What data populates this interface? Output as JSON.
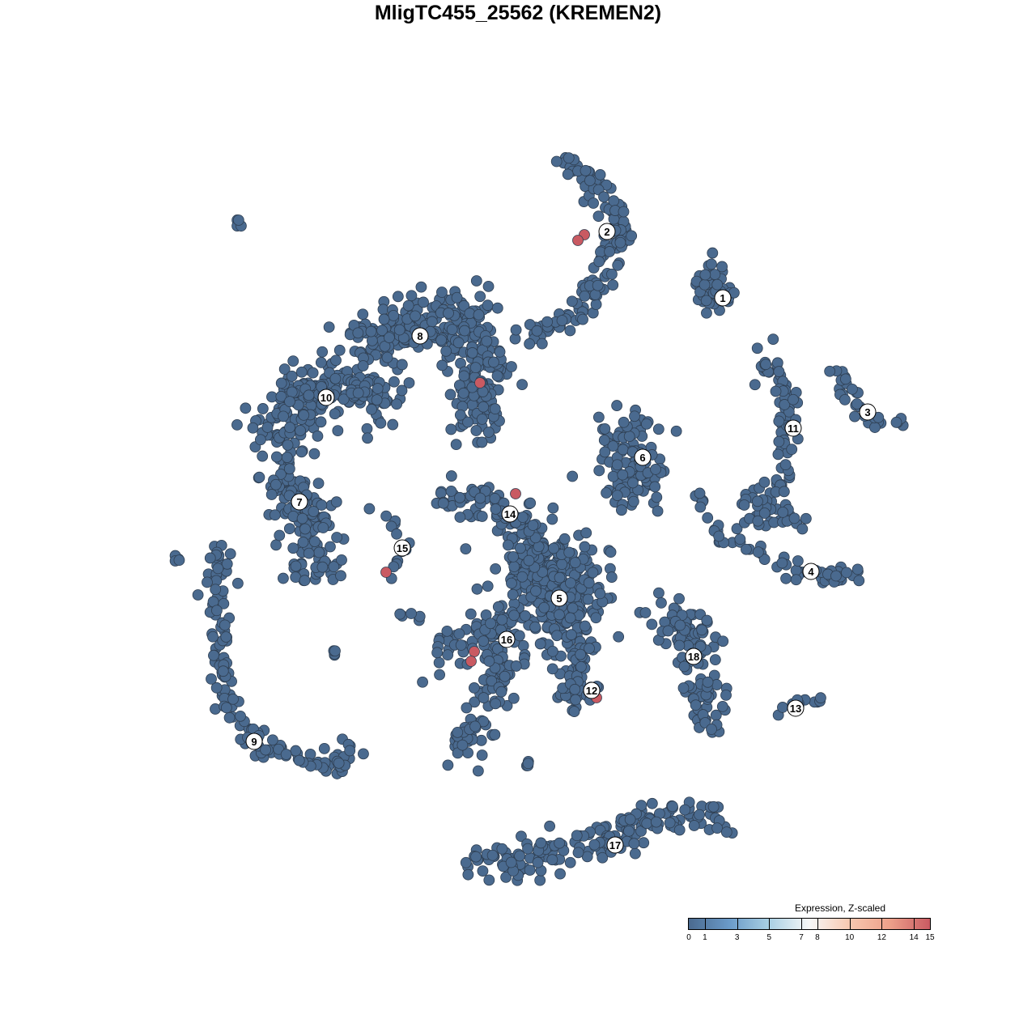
{
  "chart_data": {
    "type": "scatter",
    "title": "MligTC455_25562 (KREMEN2)",
    "xlabel": "",
    "ylabel": "",
    "axes_visible": false,
    "grid": false,
    "xlim": [
      -64,
      64
    ],
    "ylim": [
      -64,
      64
    ],
    "colors": {
      "low": "#4a6a8f",
      "high": "#c95a62",
      "point_outline": "#2f3f52"
    },
    "clusters": [
      {
        "label": "1",
        "label_pos": [
          25.3,
          27.2
        ],
        "path": [
          [
            23,
            30
          ],
          [
            25,
            28
          ],
          [
            24,
            26
          ]
        ],
        "spread": 2.0,
        "n": 45
      },
      {
        "label": "2",
        "label_pos": [
          11,
          35.4
        ],
        "path": [
          [
            5,
            44
          ],
          [
            10,
            41
          ],
          [
            13,
            35
          ],
          [
            10,
            29
          ],
          [
            7,
            25
          ],
          [
            2,
            22.5
          ]
        ],
        "spread": 1.4,
        "n": 130
      },
      {
        "label": "3",
        "label_pos": [
          43.2,
          13.1
        ],
        "path": [
          [
            39,
            19
          ],
          [
            41,
            15
          ],
          [
            44,
            12
          ],
          [
            47,
            12
          ]
        ],
        "spread": 0.9,
        "n": 30
      },
      {
        "label": "4",
        "label_pos": [
          36.2,
          -6.6
        ],
        "path": [
          [
            22,
            3
          ],
          [
            25,
            -2
          ],
          [
            30,
            -5
          ],
          [
            36,
            -7
          ],
          [
            42,
            -7
          ]
        ],
        "spread": 0.9,
        "n": 60
      },
      {
        "label": "5",
        "label_pos": [
          5.1,
          -9.9
        ],
        "path": [
          [
            2,
            -4
          ],
          [
            5,
            -9
          ],
          [
            7,
            -13
          ]
        ],
        "spread": 4.5,
        "n": 380
      },
      {
        "label": "6",
        "label_pos": [
          15.4,
          7.5
        ],
        "path": [
          [
            12,
            11
          ],
          [
            15,
            7
          ],
          [
            14,
            2
          ]
        ],
        "spread": 3.0,
        "n": 120
      },
      {
        "label": "7",
        "label_pos": [
          -27,
          2
        ],
        "path": [
          [
            -30,
            6
          ],
          [
            -27,
            2
          ],
          [
            -25,
            -3
          ],
          [
            -25,
            -7
          ]
        ],
        "spread": 2.5,
        "n": 150
      },
      {
        "label": "8",
        "label_pos": [
          -12.1,
          22.5
        ],
        "path": [
          [
            -20,
            22
          ],
          [
            -12,
            24
          ],
          [
            -5,
            24
          ],
          [
            -5,
            15
          ],
          [
            -5,
            11
          ]
        ],
        "spread": 3.2,
        "n": 330
      },
      {
        "label": "9",
        "label_pos": [
          -32.6,
          -27.6
        ],
        "path": [
          [
            -37,
            -4
          ],
          [
            -37,
            -14
          ],
          [
            -36,
            -23
          ],
          [
            -32,
            -28
          ],
          [
            -26,
            -30
          ],
          [
            -22,
            -31
          ],
          [
            -21,
            -28
          ]
        ],
        "spread": 1.2,
        "n": 150
      },
      {
        "label": "10",
        "label_pos": [
          -23.7,
          14.9
        ],
        "path": [
          [
            -30,
            9
          ],
          [
            -28,
            14
          ],
          [
            -23,
            17
          ],
          [
            -17,
            15
          ]
        ],
        "spread": 3.2,
        "n": 220
      },
      {
        "label": "11",
        "label_pos": [
          34,
          11.1
        ],
        "path": [
          [
            30,
            20
          ],
          [
            33,
            15
          ],
          [
            33,
            9
          ],
          [
            32,
            4
          ],
          [
            28,
            1
          ],
          [
            35,
            0
          ]
        ],
        "spread": 1.5,
        "n": 110
      },
      {
        "label": "12",
        "label_pos": [
          9.1,
          -21.3
        ],
        "path": [
          [
            6,
            -17
          ],
          [
            8,
            -20
          ],
          [
            7,
            -24
          ]
        ],
        "spread": 2.0,
        "n": 50
      },
      {
        "label": "13",
        "label_pos": [
          34.3,
          -23.5
        ],
        "path": [
          [
            32,
            -24
          ],
          [
            35,
            -23
          ],
          [
            37,
            -22
          ]
        ],
        "spread": 0.7,
        "n": 12
      },
      {
        "label": "14",
        "label_pos": [
          -1,
          0.5
        ],
        "path": [
          [
            -10,
            2.5
          ],
          [
            -4,
            2.5
          ],
          [
            -2,
            1
          ],
          [
            2,
            -2
          ]
        ],
        "spread": 1.6,
        "n": 70
      },
      {
        "label": "15",
        "label_pos": [
          -14.3,
          -3.7
        ],
        "path": [
          [
            -18,
            1.5
          ],
          [
            -15,
            -1
          ],
          [
            -14,
            -4
          ],
          [
            -16,
            -7
          ]
        ],
        "spread": 0.6,
        "n": 15
      },
      {
        "label": "16",
        "label_pos": [
          -1.4,
          -15
        ],
        "path": [
          [
            -11,
            -17
          ],
          [
            -4,
            -14
          ],
          [
            0,
            -12
          ],
          [
            -3,
            -20
          ],
          [
            -6,
            -27
          ],
          [
            -8,
            -29
          ]
        ],
        "spread": 2.2,
        "n": 170
      },
      {
        "label": "17",
        "label_pos": [
          12,
          -40.4
        ],
        "path": [
          [
            -6,
            -43
          ],
          [
            3,
            -42
          ],
          [
            10,
            -40
          ],
          [
            17,
            -37
          ],
          [
            25,
            -37
          ]
        ],
        "spread": 1.8,
        "n": 170
      },
      {
        "label": "18",
        "label_pos": [
          21.7,
          -17.1
        ],
        "path": [
          [
            17,
            -11
          ],
          [
            22,
            -14
          ],
          [
            22,
            -20
          ],
          [
            24,
            -25
          ]
        ],
        "spread": 2.3,
        "n": 110
      },
      {
        "label": "",
        "label_pos": null,
        "path": [
          [
            -35,
            37
          ],
          [
            -34,
            36
          ]
        ],
        "spread": 0.3,
        "n": 4
      },
      {
        "label": "",
        "label_pos": null,
        "path": [
          [
            -42,
            -5
          ],
          [
            -42,
            -5
          ]
        ],
        "spread": 0.3,
        "n": 4
      },
      {
        "label": "",
        "label_pos": null,
        "path": [
          [
            -23,
            -16.5
          ],
          [
            -23,
            -16.5
          ]
        ],
        "spread": 0.4,
        "n": 4
      },
      {
        "label": "",
        "label_pos": null,
        "path": [
          [
            -16,
            -12
          ],
          [
            -12,
            -12
          ]
        ],
        "spread": 0.5,
        "n": 5
      },
      {
        "label": "",
        "label_pos": null,
        "path": [
          [
            1,
            -30
          ],
          [
            1,
            -31
          ]
        ],
        "spread": 0.4,
        "n": 4
      }
    ],
    "expressed_points": [
      {
        "x": 8.2,
        "y": 35.0,
        "value": 15
      },
      {
        "x": 7.4,
        "y": 34.3,
        "value": 15
      },
      {
        "x": -4.7,
        "y": 16.7,
        "value": 15
      },
      {
        "x": -0.3,
        "y": 3.0,
        "value": 15
      },
      {
        "x": -16.3,
        "y": -6.7,
        "value": 15
      },
      {
        "x": -5.4,
        "y": -16.5,
        "value": 15
      },
      {
        "x": -5.8,
        "y": -17.7,
        "value": 15
      },
      {
        "x": 9.7,
        "y": -22.2,
        "value": 15
      }
    ],
    "baseline_value": 0,
    "legend": {
      "title": "Expression, Z-scaled",
      "placement": "bottom-right",
      "ticks": [
        "0",
        "1",
        "3",
        "5",
        "7",
        "8",
        "10",
        "12",
        "14",
        "15"
      ],
      "range": [
        0,
        15
      ],
      "gradient": [
        "#4a6a8f",
        "#6a9ac8",
        "#a9d0e4",
        "#f7f7f7",
        "#f8c8b0",
        "#eda08a",
        "#c95a62"
      ]
    }
  }
}
